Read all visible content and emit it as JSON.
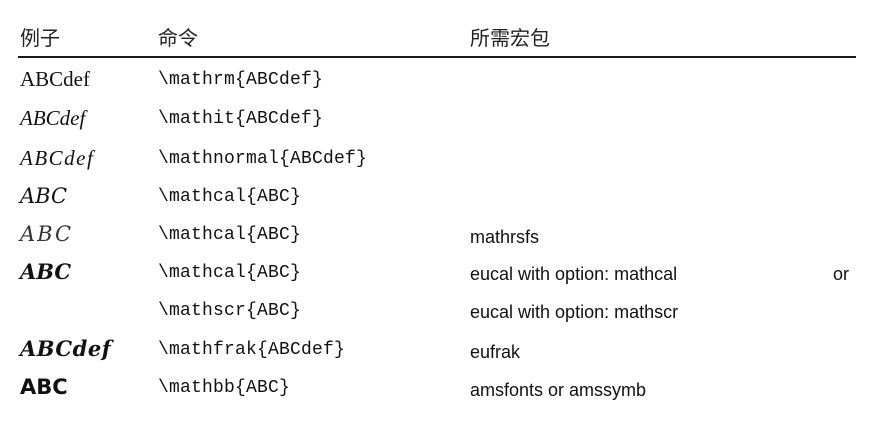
{
  "header": {
    "example": "例子",
    "command": "命令",
    "package": "所需宏包"
  },
  "rows": [
    {
      "example": "ABCdef",
      "command": "\\mathrm{ABCdef}",
      "package": ""
    },
    {
      "example": "ABCdef",
      "command": "\\mathit{ABCdef}",
      "package": ""
    },
    {
      "example": "ABCdef",
      "command": "\\mathnormal{ABCdef}",
      "package": ""
    },
    {
      "example": "ABC",
      "command": "\\mathcal{ABC}",
      "package": ""
    },
    {
      "example": "ABC",
      "command": "\\mathcal{ABC}",
      "package": "mathrsfs"
    },
    {
      "example": "ABC",
      "command": "\\mathcal{ABC}",
      "package": "eucal with option: mathcal",
      "package_extra": "or"
    },
    {
      "example": "",
      "command": "\\mathscr{ABC}",
      "package": "eucal with option: mathscr"
    },
    {
      "example": "ABCdef",
      "command": "\\mathfrak{ABCdef}",
      "package": "eufrak"
    },
    {
      "example": "ABC",
      "command": "\\mathbb{ABC}",
      "package": "amsfonts or amssymb"
    }
  ]
}
